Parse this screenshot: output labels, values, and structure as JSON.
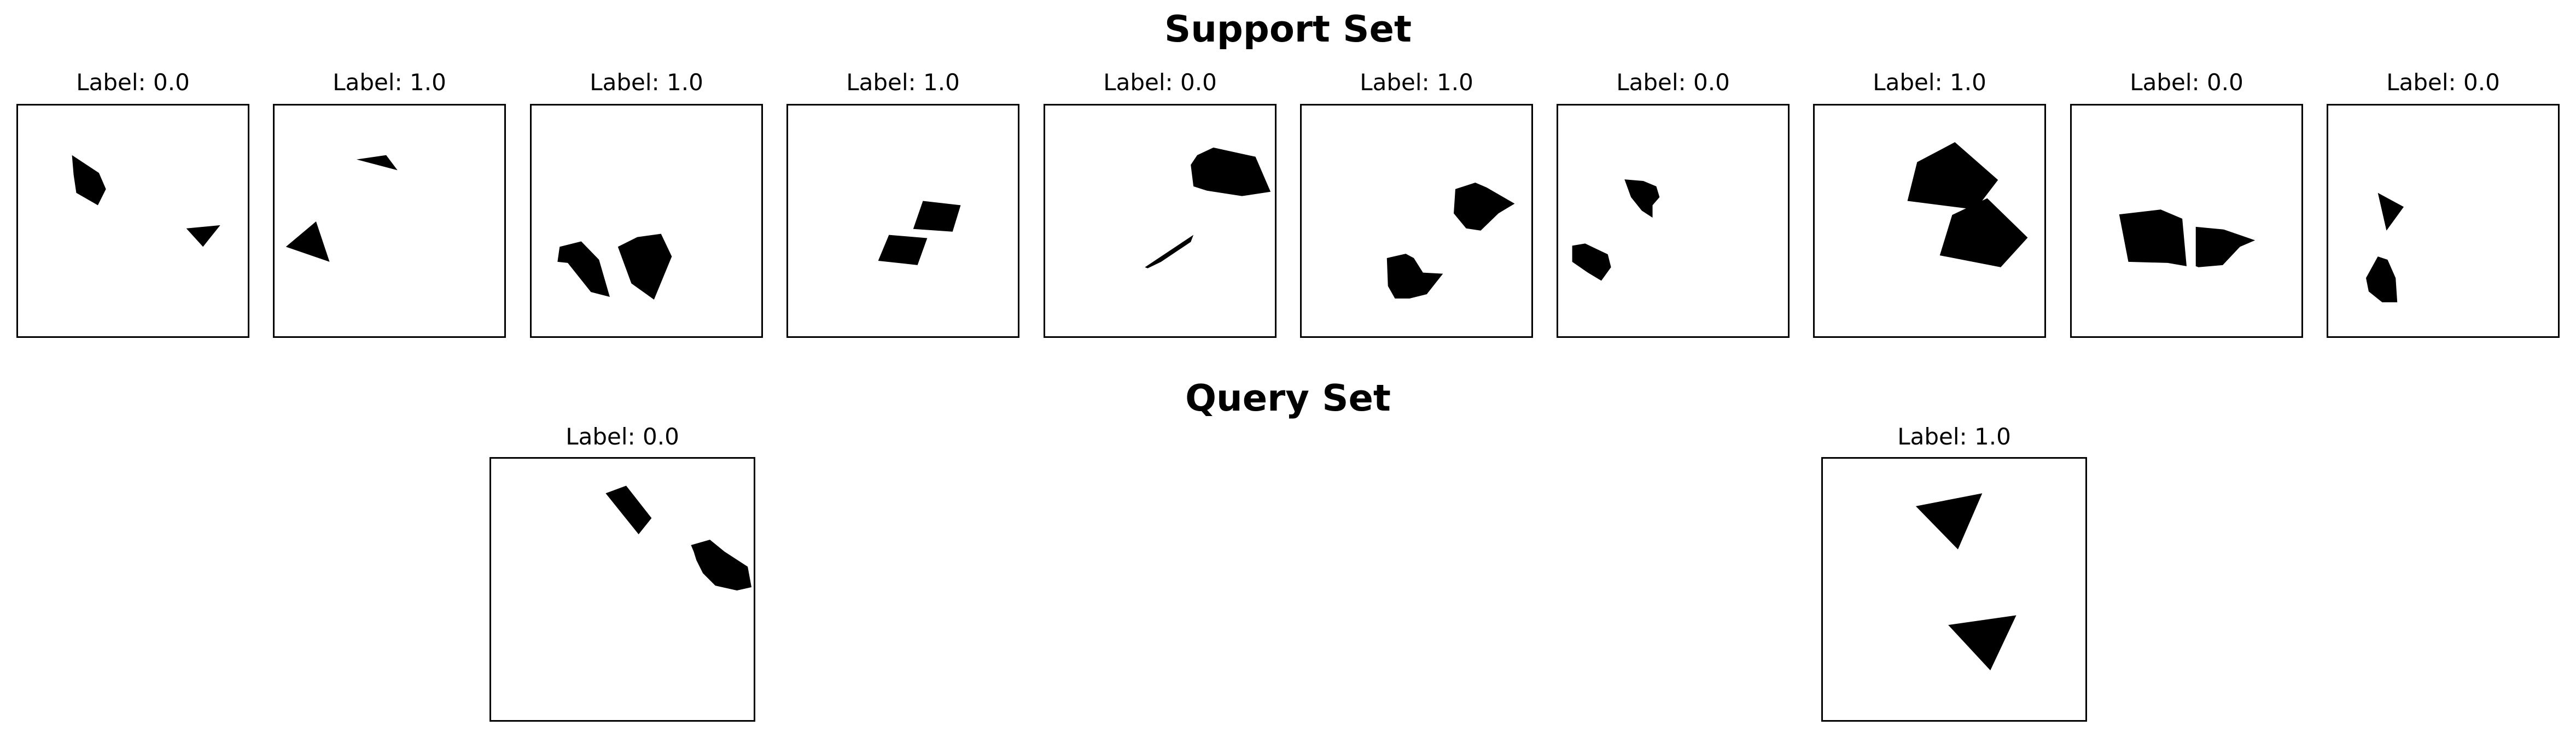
{
  "support": {
    "title": "Support Set",
    "panels": [
      {
        "label": "Label: 0.0"
      },
      {
        "label": "Label: 1.0"
      },
      {
        "label": "Label: 1.0"
      },
      {
        "label": "Label: 1.0"
      },
      {
        "label": "Label: 0.0"
      },
      {
        "label": "Label: 1.0"
      },
      {
        "label": "Label: 0.0"
      },
      {
        "label": "Label: 1.0"
      },
      {
        "label": "Label: 0.0"
      },
      {
        "label": "Label: 0.0"
      }
    ]
  },
  "query": {
    "title": "Query Set",
    "panels": [
      {
        "label": "Label: 0.0"
      },
      {
        "label": "Label: 1.0"
      }
    ]
  }
}
